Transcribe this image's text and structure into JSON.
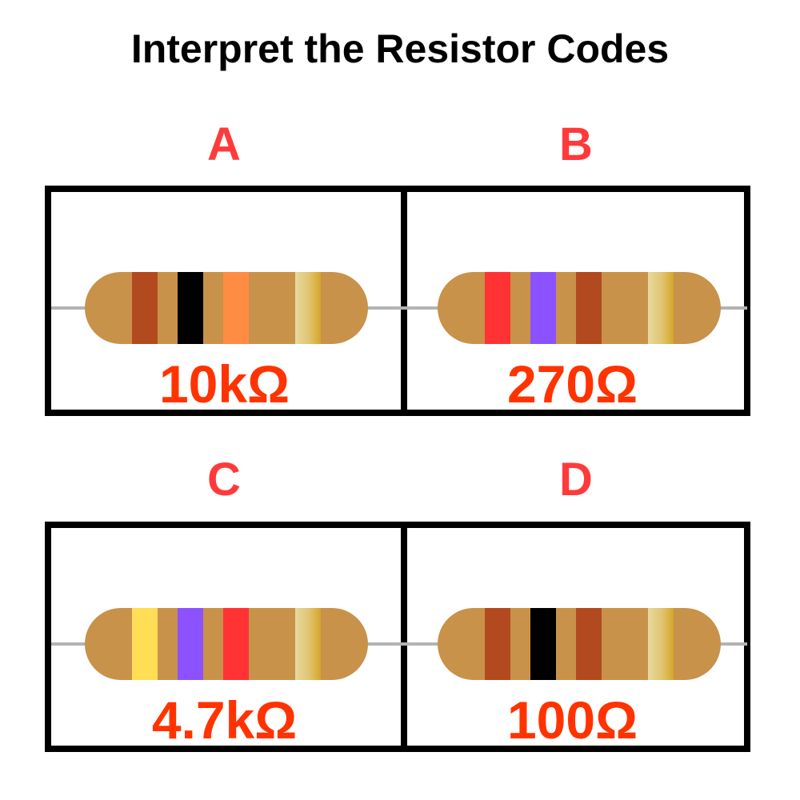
{
  "title": "Interpret the Resistor Codes",
  "colors": {
    "letter": "#ff3a3a",
    "value": "#ff3300",
    "body": "#c8924a",
    "lead": "#b3b3b3",
    "gold": "#d4a62a"
  },
  "resistors": [
    {
      "letter": "A",
      "value": "10kΩ",
      "bands": [
        "#b34a1f",
        "#000000",
        "#ff8c42"
      ]
    },
    {
      "letter": "B",
      "value": "270Ω",
      "bands": [
        "#ff3333",
        "#8c52ff",
        "#b34a1f"
      ]
    },
    {
      "letter": "C",
      "value": "4.7kΩ",
      "bands": [
        "#ffdd55",
        "#8c52ff",
        "#ff3333"
      ]
    },
    {
      "letter": "D",
      "value": "100Ω",
      "bands": [
        "#b34a1f",
        "#000000",
        "#b34a1f"
      ]
    }
  ]
}
